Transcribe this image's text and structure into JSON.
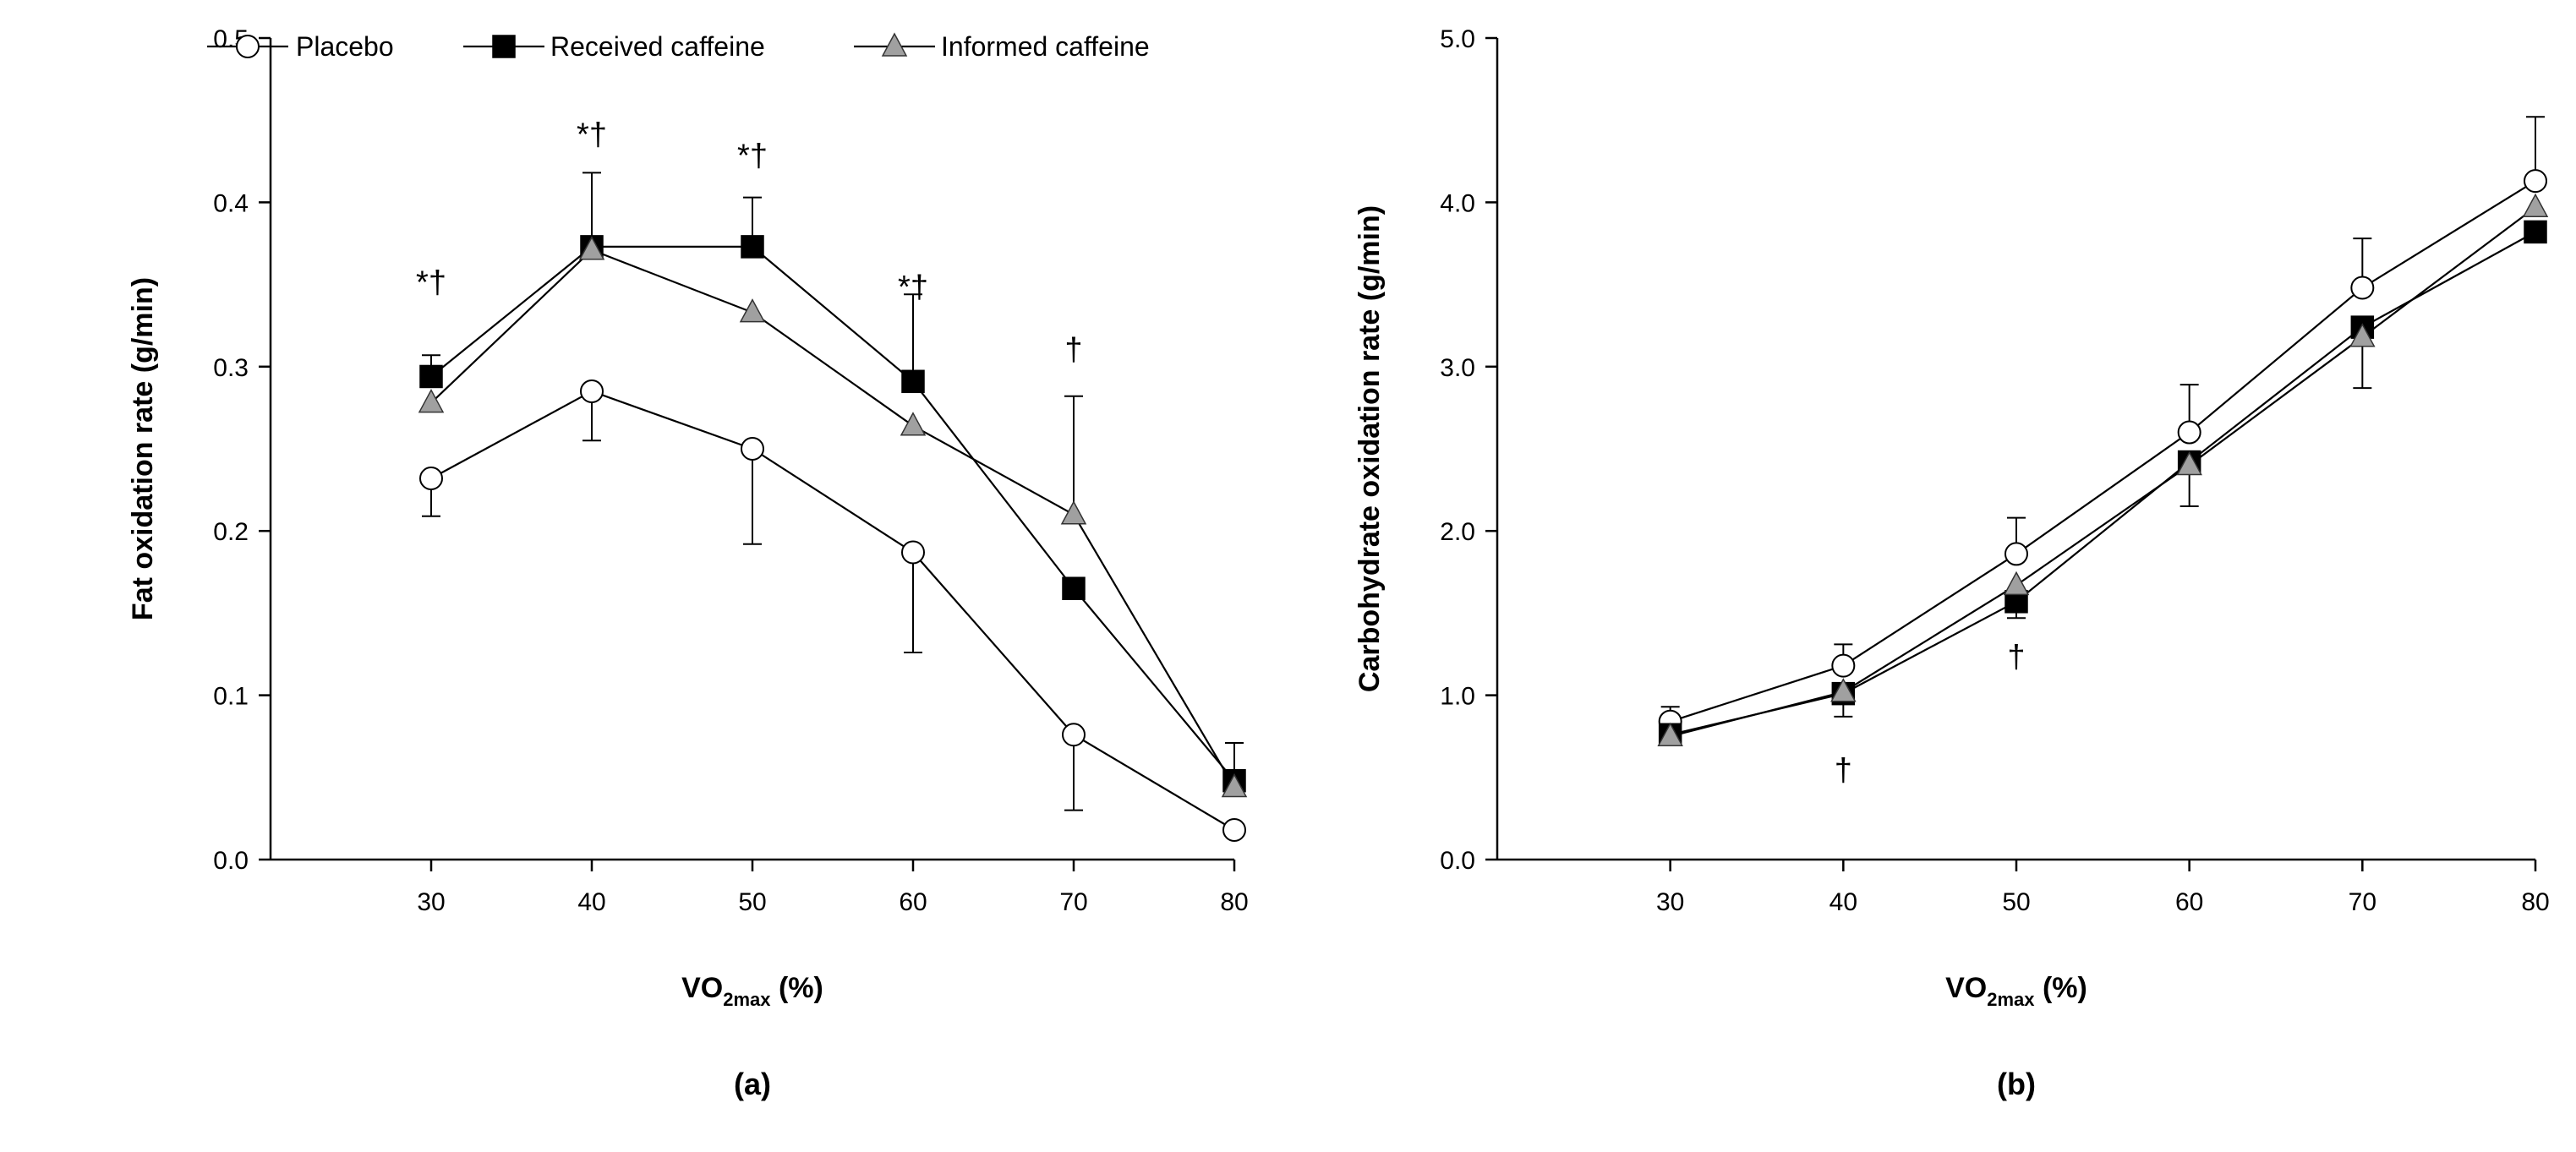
{
  "chart_data": [
    {
      "type": "line",
      "panel_label": "(a)",
      "xlabel": {
        "main": "VO",
        "sub": "2max",
        "rest": " (%)"
      },
      "ylabel": "Fat oxidation rate (g/min)",
      "x": [
        30,
        40,
        50,
        60,
        70,
        80
      ],
      "xlim": [
        20,
        80
      ],
      "ylim": [
        0,
        0.5
      ],
      "x_ticks": [
        30,
        40,
        50,
        60,
        70,
        80
      ],
      "x_tick_labels": [
        "30",
        "40",
        "50",
        "60",
        "70",
        "80"
      ],
      "y_ticks": [
        0.0,
        0.1,
        0.2,
        0.3,
        0.4,
        0.5
      ],
      "y_tick_labels": [
        "0.0",
        "0.1",
        "0.2",
        "0.3",
        "0.4",
        "0.5"
      ],
      "legend": {
        "position": "top"
      },
      "series": [
        {
          "name": "Placebo",
          "marker": "circle",
          "color": "#ffffff",
          "values": [
            0.232,
            0.285,
            0.25,
            0.187,
            0.076,
            0.018
          ],
          "error_up": [
            0,
            0,
            0,
            0,
            0,
            0
          ],
          "error_down": [
            0.023,
            0.03,
            0.058,
            0.061,
            0.046,
            0
          ]
        },
        {
          "name": "Received caffeine",
          "marker": "square",
          "color": "#000000",
          "values": [
            0.294,
            0.373,
            0.373,
            0.291,
            0.165,
            0.048
          ],
          "error_up": [
            0.013,
            0.045,
            0.03,
            0.053,
            0,
            0.023
          ],
          "error_down": [
            0,
            0,
            0,
            0,
            0,
            0
          ]
        },
        {
          "name": "Informed caffeine",
          "marker": "triangle",
          "color": "#a0a0a0",
          "values": [
            0.278,
            0.371,
            0.333,
            0.264,
            0.21,
            0.044
          ],
          "error_up": [
            0,
            0,
            0,
            0,
            0.072,
            0
          ],
          "error_down": [
            0,
            0,
            0,
            0,
            0,
            0
          ]
        }
      ],
      "annotations": [
        {
          "text": "*†",
          "x": 30,
          "y": 0.345
        },
        {
          "text": "*†",
          "x": 40,
          "y": 0.435
        },
        {
          "text": "*†",
          "x": 50,
          "y": 0.422
        },
        {
          "text": "*†",
          "x": 60,
          "y": 0.342
        },
        {
          "text": "†",
          "x": 70,
          "y": 0.304
        }
      ]
    },
    {
      "type": "line",
      "panel_label": "(b)",
      "xlabel": {
        "main": "VO",
        "sub": "2max",
        "rest": " (%)"
      },
      "ylabel": "Carbohydrate oxidation rate (g/min)",
      "x": [
        30,
        40,
        50,
        60,
        70,
        80
      ],
      "xlim": [
        20,
        80
      ],
      "ylim": [
        0,
        5
      ],
      "x_ticks": [
        30,
        40,
        50,
        60,
        70,
        80
      ],
      "x_tick_labels": [
        "30",
        "40",
        "50",
        "60",
        "70",
        "80"
      ],
      "y_ticks": [
        0,
        1,
        2,
        3,
        4,
        5
      ],
      "y_tick_labels": [
        "0.0",
        "1.0",
        "2.0",
        "3.0",
        "4.0",
        "5.0"
      ],
      "legend": {
        "position": "none"
      },
      "series": [
        {
          "name": "Placebo",
          "marker": "circle",
          "color": "#ffffff",
          "values": [
            0.84,
            1.18,
            1.86,
            2.6,
            3.48,
            4.13
          ],
          "error_up": [
            0.09,
            0.13,
            0.22,
            0.29,
            0.3,
            0.39
          ],
          "error_down": [
            0,
            0,
            0,
            0,
            0,
            0
          ]
        },
        {
          "name": "Received caffeine",
          "marker": "square",
          "color": "#000000",
          "values": [
            0.76,
            1.01,
            1.57,
            2.42,
            3.24,
            3.82
          ],
          "error_up": [
            0,
            0,
            0,
            0,
            0,
            0
          ],
          "error_down": [
            0,
            0.14,
            0.1,
            0.27,
            0.37,
            0
          ]
        },
        {
          "name": "Informed caffeine",
          "marker": "triangle",
          "color": "#a0a0a0",
          "values": [
            0.75,
            1.02,
            1.67,
            2.4,
            3.18,
            3.97
          ],
          "error_up": [
            0,
            0,
            0,
            0,
            0,
            0
          ],
          "error_down": [
            0,
            0,
            0,
            0,
            0,
            0
          ]
        }
      ],
      "annotations": [
        {
          "text": "†",
          "x": 40,
          "y": 0.48
        },
        {
          "text": "†",
          "x": 50,
          "y": 1.17
        }
      ]
    }
  ]
}
